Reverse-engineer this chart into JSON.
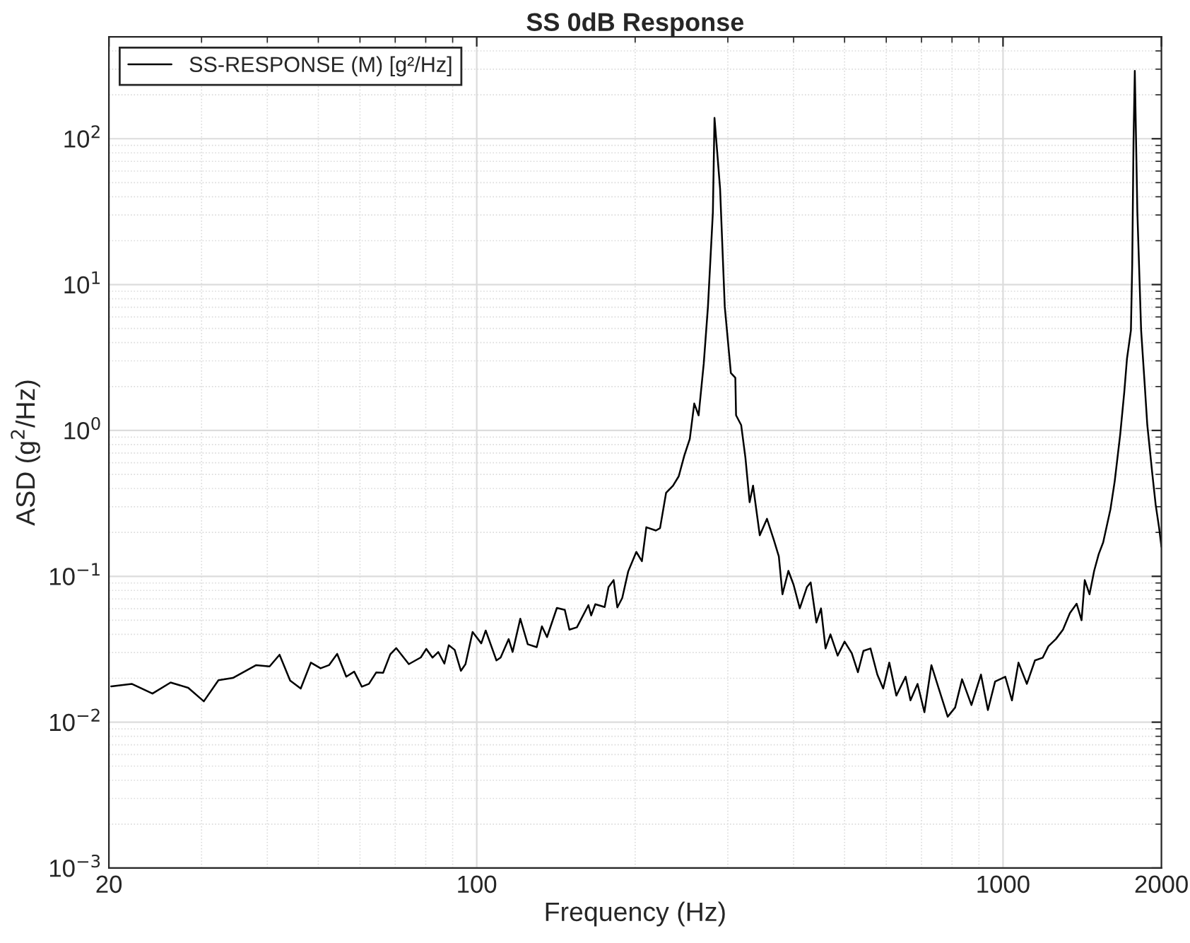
{
  "chart_data": {
    "type": "line",
    "title": "SS 0dB Response",
    "xlabel": "Frequency (Hz)",
    "ylabel": "ASD (g$^{2}$/Hz)",
    "log": "xy",
    "grid": true,
    "legend": "top left",
    "line_style": "solid",
    "marker": "none",
    "xlim": [
      20,
      2000
    ],
    "xticks": [
      20,
      100,
      1000,
      2000
    ],
    "ylim": [
      0.001,
      500
    ],
    "yticks": [
      {
        "value": 0.001,
        "label": "10$^{−3}$"
      },
      {
        "value": 0.01,
        "label": "10$^{−2}$"
      },
      {
        "value": 0.1,
        "label": "10$^{−1}$"
      },
      {
        "value": 1,
        "label": "10$^{0}$"
      },
      {
        "value": 10,
        "label": "10$^{1}$"
      },
      {
        "value": 100,
        "label": "10$^{2}$"
      }
    ],
    "series": [
      {
        "name": "SS-RESPONSE (M) [g²/Hz]",
        "color": "#000000",
        "x": [
          20.2,
          22.1,
          24.2,
          26.2,
          28.3,
          30.3,
          32.3,
          34.4,
          38.1,
          40.4,
          42.2,
          44.2,
          46.3,
          48.4,
          50.5,
          52.4,
          54.3,
          56.5,
          58.5,
          60.5,
          62.4,
          64.4,
          66.4,
          68.5,
          70.3,
          74.3,
          78.3,
          80.2,
          82.4,
          84.5,
          86.8,
          88.5,
          90.8,
          93.3,
          95.2,
          98.2,
          102,
          104,
          109,
          111,
          115,
          117,
          121,
          125,
          130,
          133,
          136,
          142,
          147,
          150,
          155,
          163,
          165,
          168,
          175,
          178,
          182,
          185,
          189,
          194,
          201,
          206,
          210,
          219,
          223,
          229,
          236,
          242,
          248,
          254,
          259,
          264,
          270,
          275,
          281,
          283,
          284,
          286,
          290,
          296,
          304,
          310,
          311,
          318,
          324,
          330,
          335,
          345,
          356,
          367,
          375,
          381,
          391,
          400,
          411,
          424,
          431,
          442,
          451,
          460,
          470,
          485,
          500,
          516,
          530,
          543,
          560,
          577,
          592,
          608,
          627,
          653,
          667,
          688,
          709,
          731,
          755,
          785,
          811,
          836,
          871,
          908,
          936,
          966,
          1010,
          1040,
          1070,
          1110,
          1150,
          1190,
          1220,
          1260,
          1300,
          1340,
          1380,
          1410,
          1430,
          1460,
          1490,
          1520,
          1550,
          1600,
          1630,
          1670,
          1700,
          1720,
          1750,
          1760,
          1770,
          1775,
          1780,
          1800,
          1830,
          1860,
          1880,
          1920,
          1950,
          1980,
          2000
        ],
        "values": [
          0.0176,
          0.0183,
          0.0157,
          0.0187,
          0.0172,
          0.0139,
          0.0194,
          0.0201,
          0.0246,
          0.0241,
          0.029,
          0.0193,
          0.017,
          0.0256,
          0.0234,
          0.0246,
          0.0294,
          0.0205,
          0.0222,
          0.0175,
          0.0183,
          0.0219,
          0.0218,
          0.0292,
          0.0322,
          0.025,
          0.0278,
          0.0318,
          0.0277,
          0.0303,
          0.0252,
          0.0337,
          0.0313,
          0.0225,
          0.025,
          0.0415,
          0.0347,
          0.0425,
          0.0265,
          0.0277,
          0.0371,
          0.0303,
          0.0512,
          0.0342,
          0.0327,
          0.0454,
          0.0383,
          0.0607,
          0.0589,
          0.0431,
          0.0447,
          0.0635,
          0.0539,
          0.0644,
          0.0616,
          0.0843,
          0.0942,
          0.0612,
          0.071,
          0.108,
          0.147,
          0.127,
          0.217,
          0.206,
          0.214,
          0.374,
          0.418,
          0.485,
          0.673,
          0.875,
          1.53,
          1.27,
          2.88,
          7.05,
          31.3,
          139,
          null,
          null,
          45.4,
          7.05,
          2.48,
          2.3,
          1.27,
          1.09,
          0.649,
          0.322,
          0.418,
          0.191,
          0.248,
          0.177,
          0.137,
          0.0753,
          0.109,
          0.0875,
          0.0603,
          0.0843,
          0.0908,
          0.0482,
          0.0603,
          0.032,
          0.04,
          0.0286,
          0.0357,
          0.0297,
          0.022,
          0.0308,
          0.032,
          0.0212,
          0.017,
          0.0256,
          0.0152,
          0.0205,
          0.0141,
          0.0183,
          0.0117,
          0.0246,
          0.017,
          0.0109,
          0.0126,
          0.0197,
          0.0131,
          0.0212,
          0.0121,
          0.019,
          0.0205,
          0.0141,
          0.0256,
          0.0183,
          0.0265,
          0.0277,
          0.0332,
          0.0371,
          0.0431,
          0.056,
          0.0649,
          0.05,
          0.0942,
          0.0753,
          0.109,
          0.142,
          0.171,
          0.288,
          0.447,
          0.942,
          1.84,
          3.1,
          4.85,
          13.8,
          95.7,
          null,
          292,
          31.3,
          4.85,
          1.99,
          1.09,
          0.519,
          0.31,
          0.214,
          0.159
        ]
      }
    ]
  }
}
